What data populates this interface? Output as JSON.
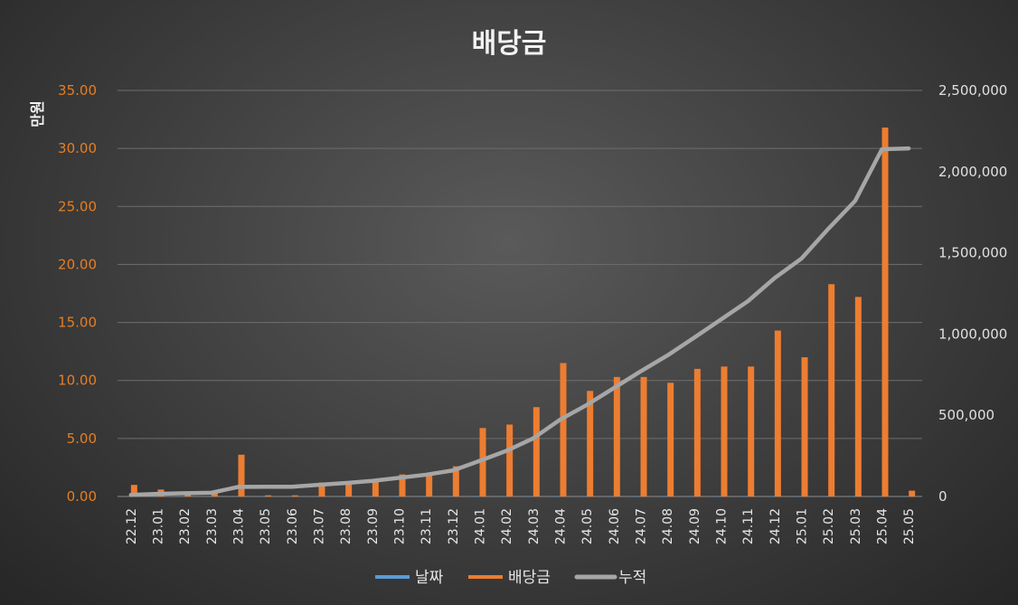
{
  "chart_data": {
    "type": "bar",
    "title": "배당금",
    "ylabel": "만원",
    "categories": [
      "22.12",
      "23.01",
      "23.02",
      "23.03",
      "23.04",
      "23.05",
      "23.06",
      "23.07",
      "23.08",
      "23.09",
      "23.10",
      "23.11",
      "23.12",
      "24.01",
      "24.02",
      "24.03",
      "24.04",
      "24.05",
      "24.06",
      "24.07",
      "24.08",
      "24.09",
      "24.10",
      "24.11",
      "24.12",
      "25.01",
      "25.02",
      "25.03",
      "25.04",
      "25.05"
    ],
    "y_left": {
      "min": 0,
      "max": 35,
      "ticks": [
        "0.00",
        "5.00",
        "10.00",
        "15.00",
        "20.00",
        "25.00",
        "30.00",
        "35.00"
      ]
    },
    "y_right": {
      "min": 0,
      "max": 2500000,
      "ticks": [
        "0",
        "500,000",
        "1,000,000",
        "1,500,000",
        "2,000,000",
        "2,500,000"
      ]
    },
    "grid": true,
    "legend_position": "bottom",
    "series": [
      {
        "name": "날짜",
        "type": "bar",
        "axis": "left",
        "color": "#5b9bd5",
        "values": [
          0.02,
          0.02,
          0.02,
          0.02,
          0.02,
          0.02,
          0.02,
          0.02,
          0.02,
          0.02,
          0.02,
          0.02,
          0.02,
          0.02,
          0.02,
          0.02,
          0.02,
          0.02,
          0.02,
          0.02,
          0.02,
          0.02,
          0.02,
          0.02,
          0.02,
          0.02,
          0.02,
          0.02,
          0.02,
          0.02
        ]
      },
      {
        "name": "배당금",
        "type": "bar",
        "axis": "left",
        "color": "#ed7d31",
        "values": [
          1.0,
          0.6,
          0.4,
          0.3,
          3.6,
          0.1,
          0.1,
          1.2,
          1.1,
          1.3,
          1.9,
          1.9,
          2.6,
          5.9,
          6.2,
          7.7,
          11.5,
          9.1,
          10.3,
          10.3,
          9.8,
          11.0,
          11.2,
          11.2,
          14.3,
          12.0,
          18.3,
          17.2,
          31.8,
          0.5
        ]
      },
      {
        "name": "누적",
        "type": "line",
        "axis": "right",
        "color": "#a6a6a6",
        "values": [
          10000,
          16000,
          20000,
          23000,
          59000,
          60000,
          60000,
          72000,
          83000,
          96000,
          115000,
          134000,
          160000,
          219000,
          281000,
          358000,
          473000,
          564000,
          667000,
          770000,
          868000,
          978000,
          1090000,
          1202000,
          1345000,
          1465000,
          1648000,
          1820000,
          2138000,
          2143000
        ]
      }
    ]
  }
}
